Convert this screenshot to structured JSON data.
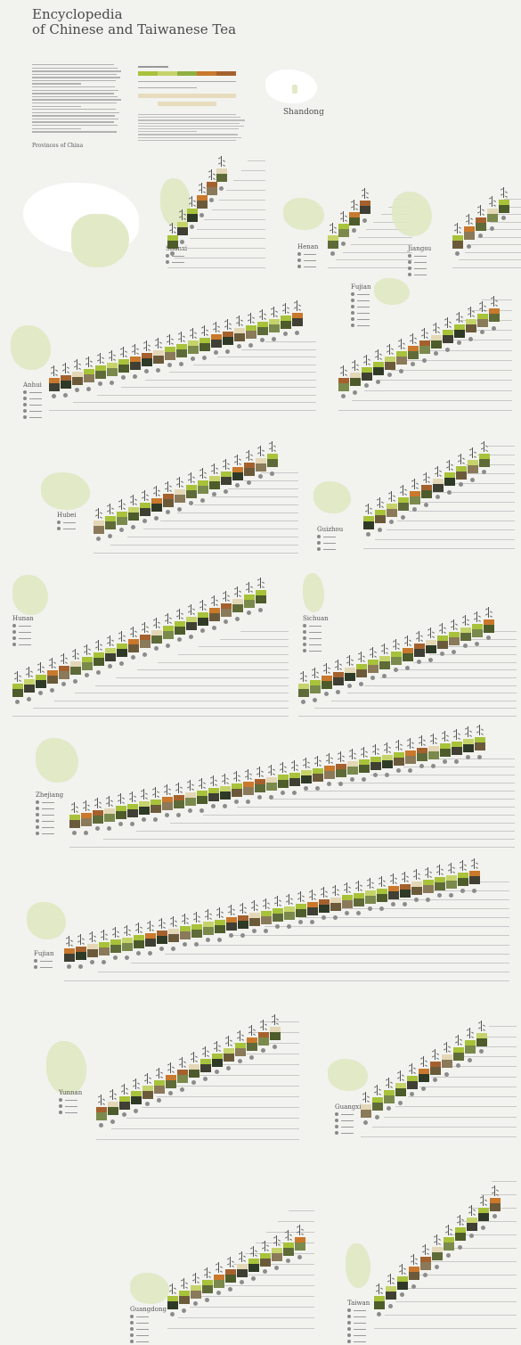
{
  "title": {
    "line1": "Encyclopedia",
    "line2": "of Chinese and Taiwanese Tea"
  },
  "provinces_heading": "Provinces of China",
  "featured": "Shandong",
  "colors": {
    "green": "#a8c23a",
    "lightgreen": "#c6d36a",
    "orange": "#c9782c",
    "brown": "#a5612d",
    "tan": "#e3d7b6",
    "dark": "#3a3a2e",
    "leaf": "#5a6b2e"
  },
  "sections": [
    {
      "name": "Shanxi"
    },
    {
      "name": "Henan"
    },
    {
      "name": "Jiangsu"
    },
    {
      "name": "Anhui"
    },
    {
      "name": "Fujian"
    },
    {
      "name": "Hubei"
    },
    {
      "name": "Guizhou"
    },
    {
      "name": "Hunan"
    },
    {
      "name": "Sichuan"
    },
    {
      "name": "Zhejiang"
    },
    {
      "name": "Fujian"
    },
    {
      "name": "Yunnan"
    },
    {
      "name": "Guangxi"
    },
    {
      "name": "Guangdong"
    },
    {
      "name": "Taiwan"
    }
  ]
}
